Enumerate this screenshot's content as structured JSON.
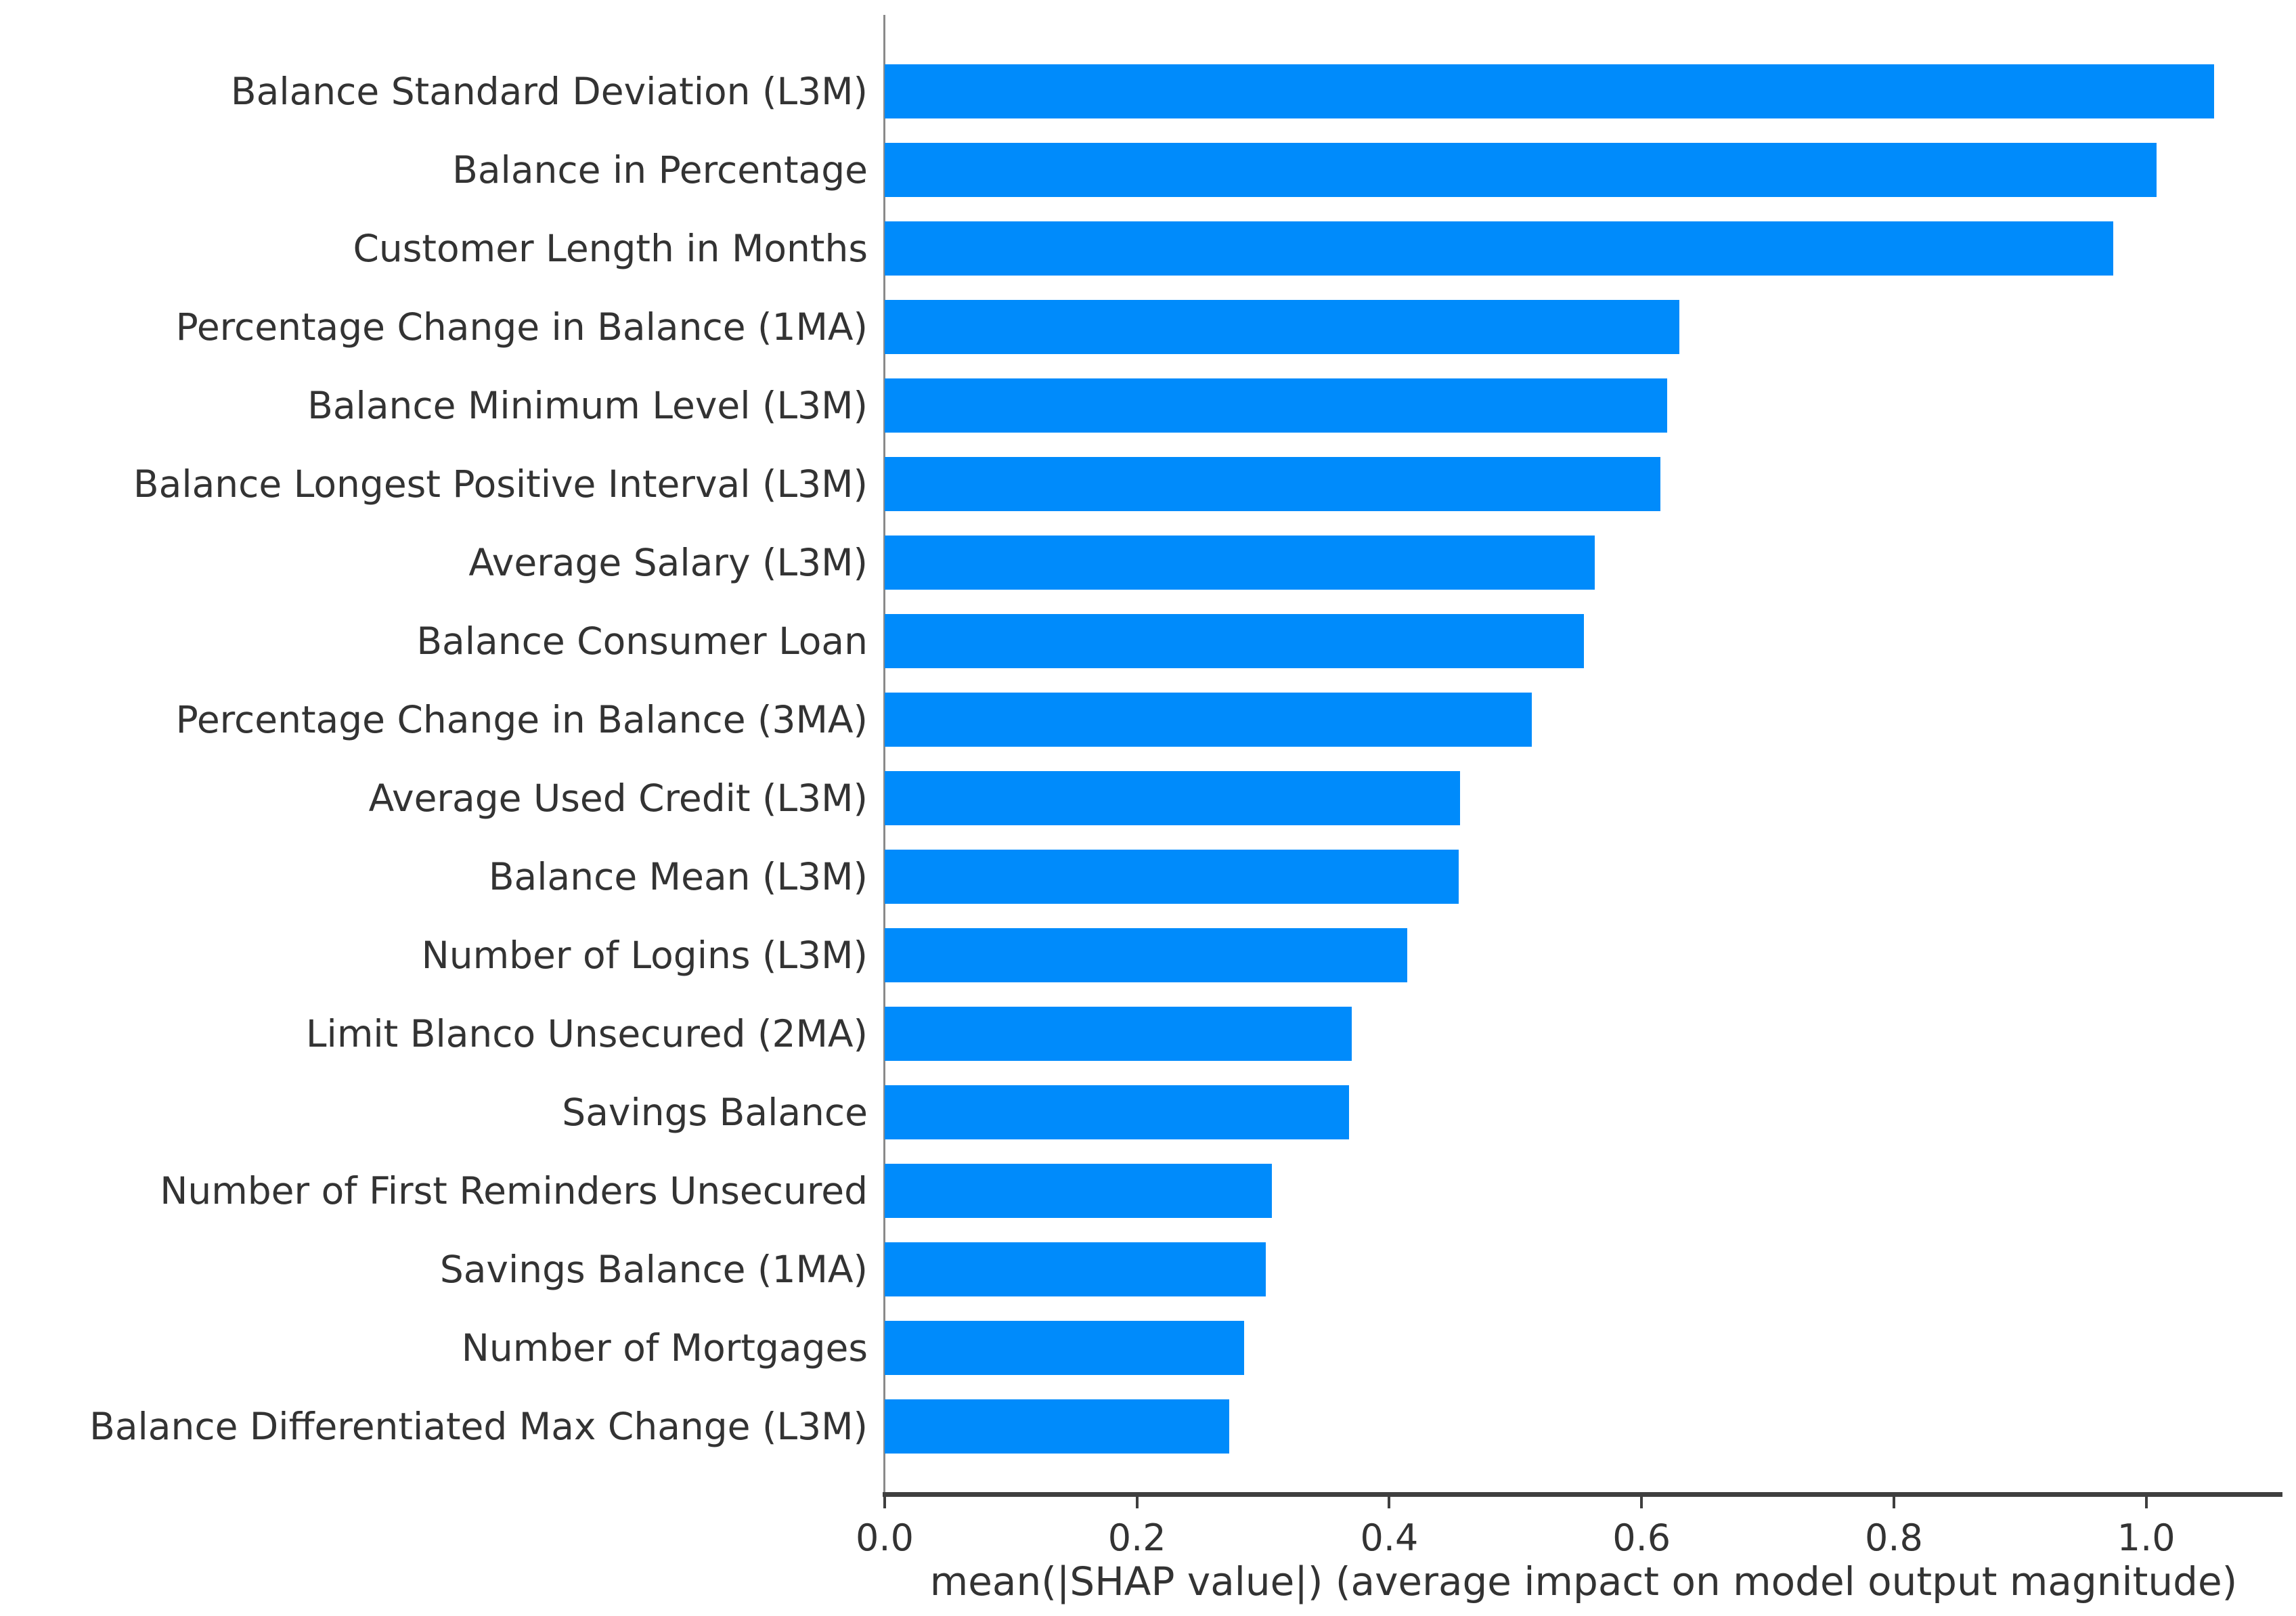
{
  "chart_data": {
    "type": "bar",
    "orientation": "horizontal",
    "title": "",
    "categories": [
      "Balance Standard Deviation (L3M)",
      "Balance in Percentage",
      "Customer Length in Months",
      "Percentage Change in Balance (1MA)",
      "Balance Minimum Level (L3M)",
      "Balance Longest Positive Interval (L3M)",
      "Average Salary (L3M)",
      "Balance Consumer Loan",
      "Percentage Change in Balance (3MA)",
      "Average Used Credit (L3M)",
      "Balance Mean (L3M)",
      "Number of Logins (L3M)",
      "Limit Blanco Unsecured (2MA)",
      "Savings Balance",
      "Number of First Reminders Unsecured",
      "Savings Balance (1MA)",
      "Number of Mortgages",
      "Balance Differentiated Max Change (L3M)"
    ],
    "values": [
      1.054,
      1.008,
      0.974,
      0.63,
      0.62,
      0.615,
      0.563,
      0.554,
      0.513,
      0.456,
      0.455,
      0.414,
      0.37,
      0.368,
      0.307,
      0.302,
      0.285,
      0.273
    ],
    "xlabel": "mean(|SHAP value|) (average impact on model output magnitude)",
    "ylabel": "",
    "xlim": [
      0,
      1.108
    ],
    "xticks": [
      0.0,
      0.2,
      0.4,
      0.6,
      0.8,
      1.0
    ],
    "xtick_labels": [
      "0.0",
      "0.2",
      "0.4",
      "0.6",
      "0.8",
      "1.0"
    ],
    "grid": false,
    "legend": null,
    "colors": {
      "bar": "#008bfb",
      "text": "#333333",
      "spine_left": "#8a8a8a",
      "spine_bottom": "#3f3f3f",
      "background": "#ffffff"
    }
  }
}
